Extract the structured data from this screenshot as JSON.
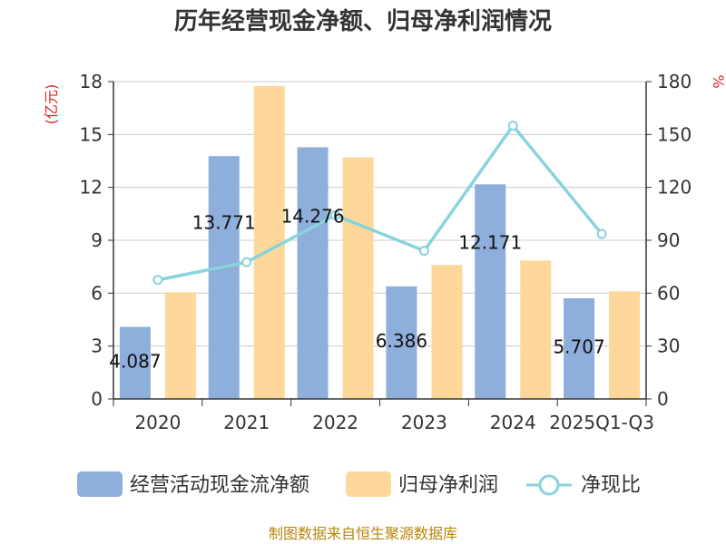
{
  "chart_data": {
    "type": "bar",
    "title": "历年经营现金净额、归母净利润情况",
    "categories": [
      "2020",
      "2021",
      "2022",
      "2023",
      "2024",
      "2025Q1-Q3"
    ],
    "left_axis": {
      "unit": "(亿元)",
      "ylim": [
        0,
        18
      ],
      "ticks": [
        "0",
        "3",
        "6",
        "9",
        "12",
        "15",
        "18"
      ]
    },
    "right_axis": {
      "unit": "%",
      "ylim": [
        0,
        180
      ],
      "ticks": [
        "0",
        "30",
        "60",
        "90",
        "120",
        "150",
        "180"
      ]
    },
    "series": [
      {
        "name": "经营活动现金流净额",
        "type": "bar",
        "axis": "left",
        "color": "#8eaedb",
        "values": [
          4.087,
          13.771,
          14.276,
          6.386,
          12.171,
          5.707
        ],
        "labels": [
          "4.087",
          "13.771",
          "14.276",
          "6.386",
          "12.171",
          "5.707"
        ]
      },
      {
        "name": "归母净利润",
        "type": "bar",
        "axis": "left",
        "color": "#fdd89a",
        "values": [
          6.05,
          17.75,
          13.7,
          7.6,
          7.85,
          6.1
        ]
      },
      {
        "name": "净现比",
        "type": "line",
        "axis": "right",
        "color": "#88d4dc",
        "values": [
          67.5,
          77.6,
          104.2,
          84.0,
          155.0,
          93.6
        ]
      }
    ],
    "grid": true,
    "legend_position": "bottom"
  },
  "footer": {
    "source": "制图数据来自恒生聚源数据库"
  }
}
